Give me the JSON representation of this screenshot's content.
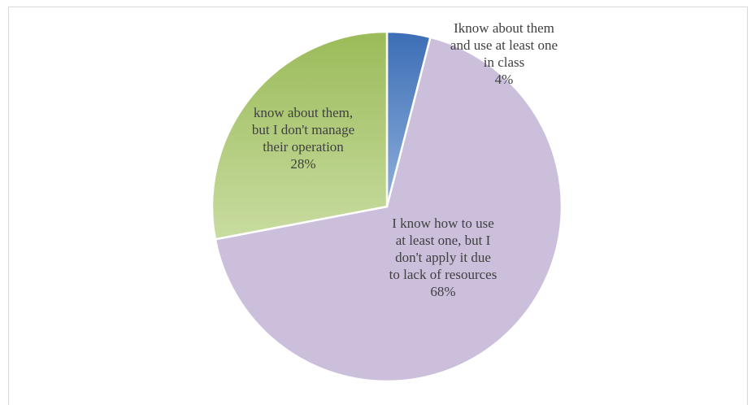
{
  "chart_data": {
    "type": "pie",
    "title": "",
    "slices": [
      {
        "label_lines": [
          "Iknow about them",
          "and use at least one",
          "in class"
        ],
        "percent_text": "4%",
        "value": 4,
        "color_top": "#3c6eb6",
        "color_bottom": "#8fb0db"
      },
      {
        "label_lines": [
          "I know how to use",
          "at least one, but I",
          "don't apply it due",
          "to lack of resources"
        ],
        "percent_text": "68%",
        "value": 68,
        "color_top": "#cbbfdc",
        "color_bottom": "#cbbfdc"
      },
      {
        "label_lines": [
          "know about them,",
          "but I don't manage",
          "their operation"
        ],
        "percent_text": "28%",
        "value": 28,
        "color_top": "#9bbb59",
        "color_bottom": "#c8dca0"
      }
    ]
  }
}
